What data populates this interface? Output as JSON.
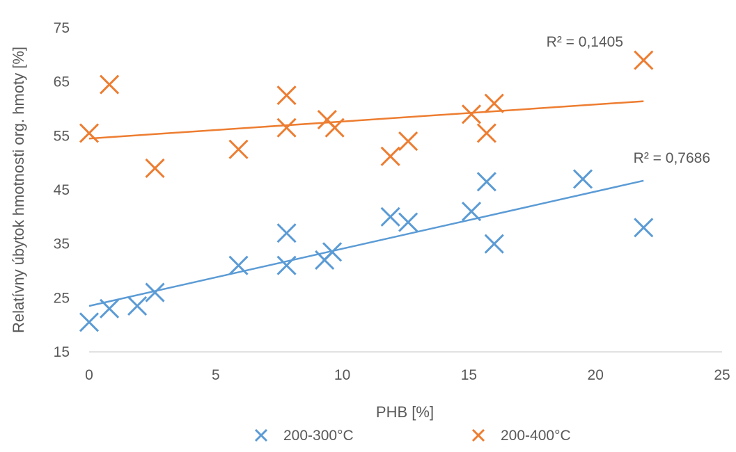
{
  "chart_data": {
    "type": "scatter",
    "xlabel": "PHB [%]",
    "ylabel": "Relatívny úbytok hmotnosti org. hmoty [%]",
    "xlim": [
      0,
      25
    ],
    "ylim": [
      15,
      75
    ],
    "xticks": [
      0,
      5,
      10,
      15,
      20,
      25
    ],
    "yticks": [
      15,
      25,
      35,
      45,
      55,
      65,
      75
    ],
    "grid": false,
    "legend_position": "bottom",
    "series": [
      {
        "name": "200-300°C",
        "color": "#5B9BD5",
        "marker": "x",
        "points": [
          [
            0,
            20.5
          ],
          [
            0.8,
            23
          ],
          [
            1.9,
            23.5
          ],
          [
            2.6,
            26
          ],
          [
            5.9,
            31
          ],
          [
            7.8,
            37
          ],
          [
            7.8,
            31
          ],
          [
            9.3,
            32
          ],
          [
            9.6,
            33.5
          ],
          [
            11.9,
            40
          ],
          [
            12.6,
            39
          ],
          [
            15.1,
            41
          ],
          [
            15.7,
            46.5
          ],
          [
            16.0,
            35
          ],
          [
            19.5,
            47
          ],
          [
            21.9,
            38
          ]
        ],
        "trendline": {
          "x": [
            0,
            21.9
          ],
          "y": [
            23.5,
            46.7
          ]
        },
        "r2_label": "R² = 0,7686"
      },
      {
        "name": "200-400°C",
        "color": "#ED7D31",
        "marker": "x",
        "points": [
          [
            0,
            55.5
          ],
          [
            0.8,
            64.5
          ],
          [
            2.6,
            49
          ],
          [
            5.9,
            52.5
          ],
          [
            7.8,
            62.5
          ],
          [
            7.8,
            56.5
          ],
          [
            9.4,
            58
          ],
          [
            9.7,
            56.5
          ],
          [
            11.9,
            51.2
          ],
          [
            12.6,
            54
          ],
          [
            15.1,
            59
          ],
          [
            15.7,
            55.5
          ],
          [
            16.0,
            61
          ],
          [
            21.9,
            69
          ]
        ],
        "trendline": {
          "x": [
            0,
            21.9
          ],
          "y": [
            54.5,
            61.4
          ]
        },
        "r2_label": "R² = 0,1405"
      }
    ]
  }
}
